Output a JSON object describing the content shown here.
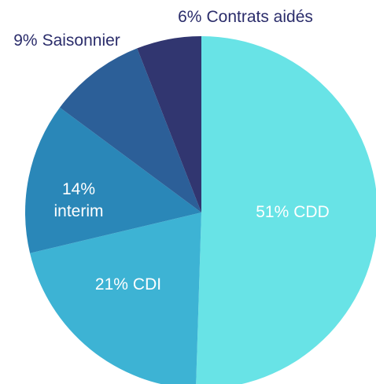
{
  "chart_data": {
    "type": "pie",
    "categories": [
      "CDD",
      "CDI",
      "interim",
      "Saisonnier",
      "Contrats aidés"
    ],
    "values": [
      51,
      21,
      14,
      9,
      6
    ],
    "value_labels": [
      "51%",
      "21%",
      "14%",
      "9%",
      "6%"
    ],
    "colors": [
      "#68e3e6",
      "#3db3d4",
      "#2a87b8",
      "#2c5f98",
      "#313670"
    ]
  }
}
